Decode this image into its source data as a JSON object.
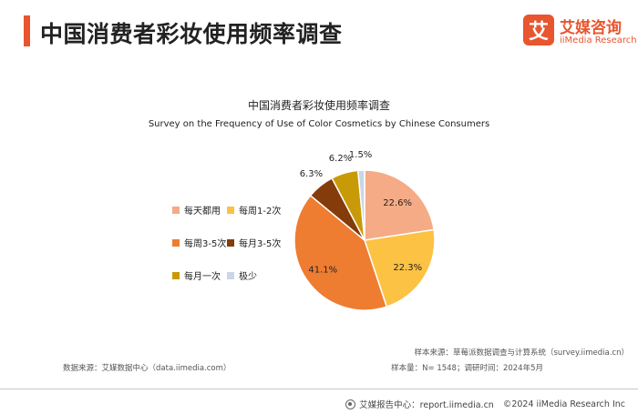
{
  "header": {
    "title": "中国消费者彩妆使用频率调查"
  },
  "logo": {
    "mark": "艾",
    "name_cn": "艾媒咨询",
    "name_en": "iiMedia Research"
  },
  "chart_data": {
    "type": "pie",
    "title": "中国消费者彩妆使用频率调查",
    "subtitle": "Survey on the Frequency of Use of Color Cosmetics by Chinese Consumers",
    "unit": "%",
    "legend_position": "left",
    "categories": [
      "每天都用",
      "每周1-2次",
      "每周3-5次",
      "每月3-5次",
      "每月一次",
      "极少"
    ],
    "values": [
      22.6,
      22.3,
      41.1,
      6.3,
      6.2,
      1.5
    ],
    "value_labels": [
      "22.6%",
      "22.3%",
      "41.1%",
      "6.3%",
      "6.2%",
      "1.5%"
    ],
    "colors": [
      "#f5ab85",
      "#fcc244",
      "#ee7d31",
      "#843c0b",
      "#c99a07",
      "#c9d6e8"
    ]
  },
  "sources": {
    "data_source": "数据来源：艾媒数据中心（data.iimedia.com）",
    "sample_source": "样本来源：草莓派数据调查与计算系统（survey.iimedia.cn）",
    "sample_info": "样本量：N= 1548；调研时间：2024年5月"
  },
  "footer": {
    "icon": "report-center-icon",
    "report_center": "艾媒报告中心：report.iimedia.cn",
    "copyright": "©2024  iiMedia Research  Inc"
  }
}
